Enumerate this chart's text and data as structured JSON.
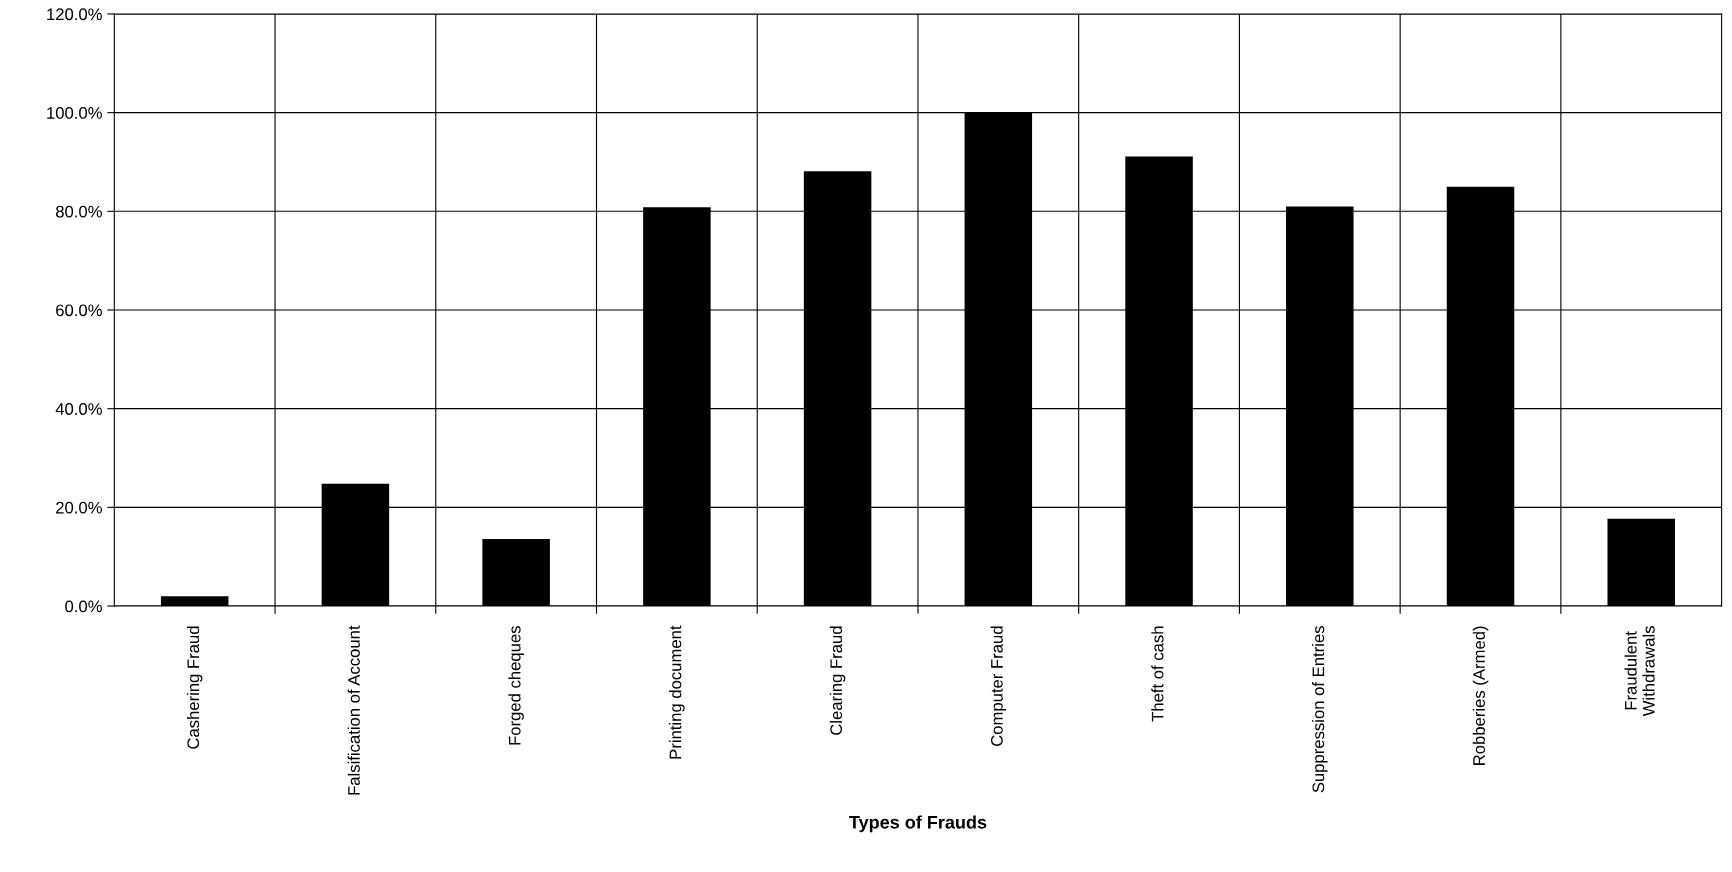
{
  "chart_data": {
    "type": "bar",
    "xlabel": "Types of Frauds",
    "categories": [
      "Cashering Fraud",
      "Falsification of Account",
      "Forged cheques",
      "Printing document",
      "Clearing Fraud",
      "Computer Fraud",
      "Theft of cash",
      "Suppression of Entries",
      "Robberies (Armed)",
      "Fraudulent\nWithdrawals"
    ],
    "values": [
      2.0,
      24.8,
      13.6,
      80.8,
      88.1,
      100.0,
      91.1,
      81.0,
      85.0,
      17.7
    ],
    "color": "#000000",
    "ylim": [
      0,
      120
    ],
    "yticks": [
      {
        "value": 0,
        "label": "0.0%"
      },
      {
        "value": 20,
        "label": "20.0%"
      },
      {
        "value": 40,
        "label": "40.0%"
      },
      {
        "value": 60,
        "label": "60.0%"
      },
      {
        "value": 80,
        "label": "80.0%"
      },
      {
        "value": 100,
        "label": "100.0%"
      },
      {
        "value": 120,
        "label": "120.0%"
      }
    ],
    "grid": true,
    "legend": false
  }
}
